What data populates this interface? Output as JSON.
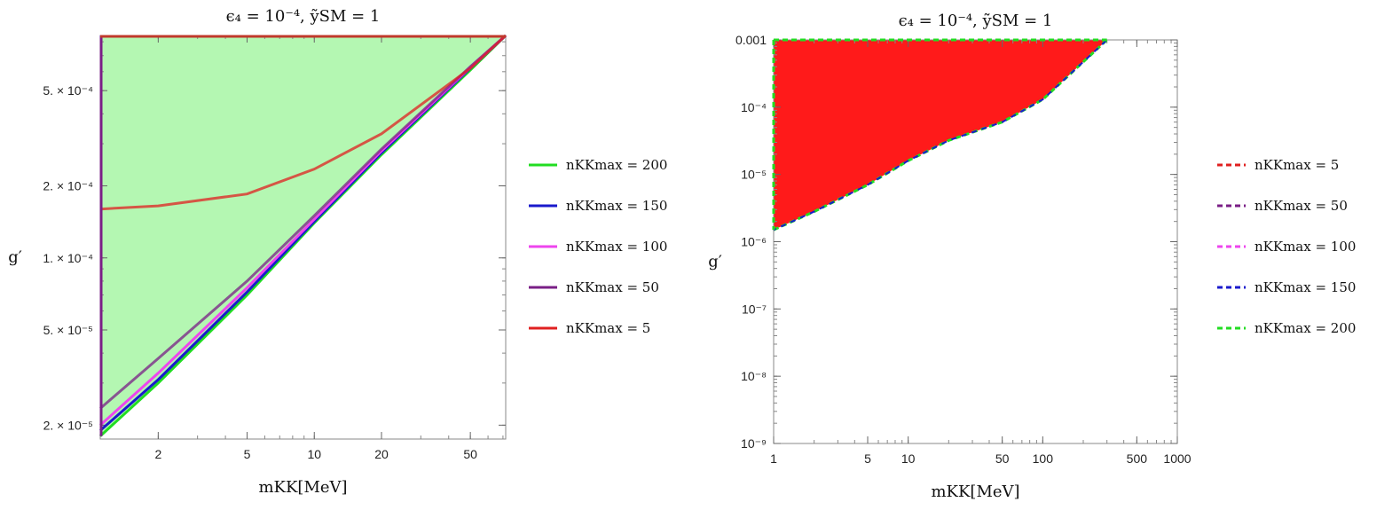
{
  "chart_data": [
    {
      "type": "area",
      "title": "ϵ₄ = 10⁻⁴, ỹSM = 1",
      "xlabel": "mKK[MeV]",
      "ylabel": "g′",
      "xscale": "log",
      "yscale": "log",
      "xlim": [
        1.1,
        72
      ],
      "ylim": [
        1.75e-05,
        0.00085
      ],
      "x_ticks": [
        "2",
        "5",
        "10",
        "20",
        "50"
      ],
      "y_ticks": [
        "5. × 10⁻⁴",
        "2. × 10⁻⁴",
        "1. × 10⁻⁴",
        "5. × 10⁻⁵",
        "2. × 10⁻⁵"
      ],
      "fill_color": "#b4f7b2",
      "legend_position": "right",
      "series": [
        {
          "name": "nKKmax = 200",
          "color": "#22dd22",
          "x": [
            1.1,
            2,
            5,
            10,
            20,
            50,
            72
          ],
          "y": [
            1.8e-05,
            3e-05,
            7e-05,
            0.00014,
            0.00027,
            0.00061,
            0.00085
          ]
        },
        {
          "name": "nKKmax = 150",
          "color": "#1a1acc",
          "x": [
            1.1,
            2,
            5,
            10,
            20,
            50,
            72
          ],
          "y": [
            1.9e-05,
            3.1e-05,
            7.2e-05,
            0.000142,
            0.000275,
            0.00062,
            0.00085
          ]
        },
        {
          "name": "nKKmax = 100",
          "color": "#ee44ee",
          "x": [
            1.1,
            2,
            5,
            10,
            20,
            50,
            72
          ],
          "y": [
            2e-05,
            3.3e-05,
            7.5e-05,
            0.000145,
            0.00028,
            0.000625,
            0.00085
          ]
        },
        {
          "name": "nKKmax = 50",
          "color": "#7a1f86",
          "x": [
            1.1,
            2,
            5,
            10,
            20,
            50,
            72
          ],
          "y": [
            2.35e-05,
            3.8e-05,
            8e-05,
            0.00015,
            0.000285,
            0.00063,
            0.00085
          ]
        },
        {
          "name": "nKKmax = 5",
          "color": "#e02020",
          "x": [
            1.1,
            2,
            5,
            10,
            20,
            50,
            72
          ],
          "y": [
            0.00016,
            0.000165,
            0.000185,
            0.000235,
            0.00033,
            0.00062,
            0.00085
          ]
        }
      ]
    },
    {
      "type": "area",
      "title": "ϵ₄ = 10⁻⁴, ỹSM = 1",
      "xlabel": "mKK[MeV]",
      "ylabel": "g′",
      "xscale": "log",
      "yscale": "log",
      "xlim": [
        1,
        1000
      ],
      "ylim": [
        1e-09,
        0.001
      ],
      "x_ticks": [
        "1",
        "5",
        "10",
        "50",
        "100",
        "500",
        "1000"
      ],
      "y_ticks": [
        "0.001",
        "10⁻⁴",
        "10⁻⁵",
        "10⁻⁶",
        "10⁻⁷",
        "10⁻⁸",
        "10⁻⁹"
      ],
      "fill_color": "#ff1a1a",
      "legend_position": "right",
      "boundary": {
        "x": [
          1,
          2,
          5,
          10,
          20,
          50,
          100,
          300
        ],
        "y": [
          1.5e-06,
          2.8e-06,
          7e-06,
          1.6e-05,
          3.2e-05,
          6e-05,
          0.00013,
          0.001
        ]
      },
      "series": [
        {
          "name": "nKKmax = 5",
          "color": "#e02020"
        },
        {
          "name": "nKKmax = 50",
          "color": "#7a1f86"
        },
        {
          "name": "nKKmax = 100",
          "color": "#ee44ee"
        },
        {
          "name": "nKKmax = 150",
          "color": "#1a1acc"
        },
        {
          "name": "nKKmax = 200",
          "color": "#22dd22"
        }
      ]
    }
  ]
}
